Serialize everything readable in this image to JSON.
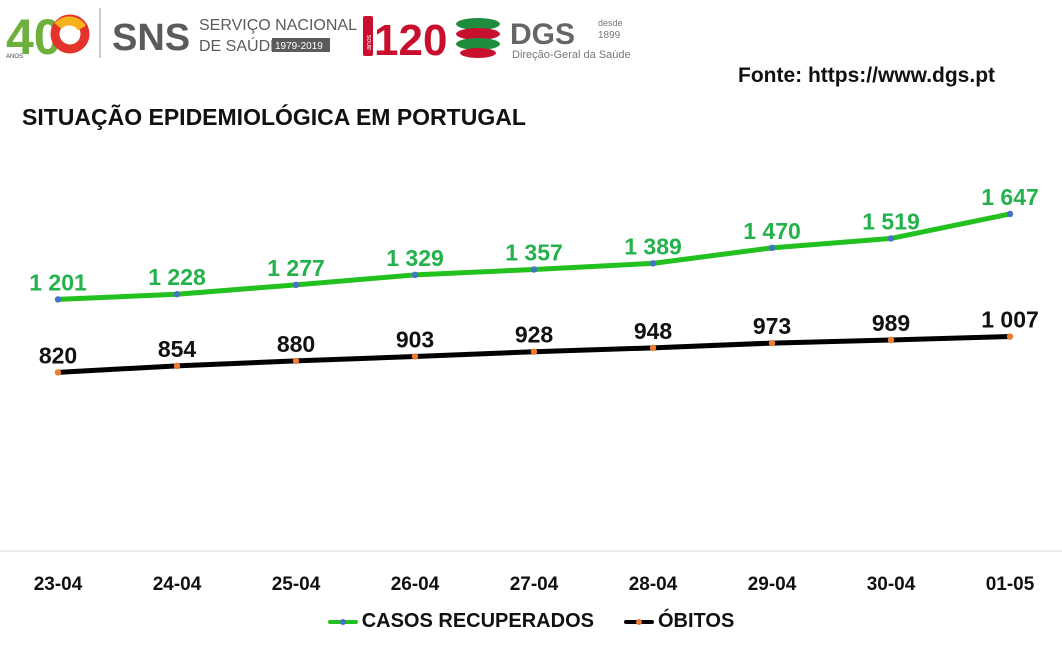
{
  "header": {
    "logo_40_number": "40",
    "logo_40_small": "ANOS",
    "sns_abbr": "SNS",
    "sns_line1": "SERVIÇO NACIONAL",
    "sns_line2": "DE SAÚDE",
    "sns_years": "1979-2019",
    "dgs_number": "120",
    "dgs_small": "anos",
    "dgs_abbr": "DGS",
    "dgs_since_1": "desde",
    "dgs_since_2": "1899",
    "dgs_name": "Direção-Geral da Saúde"
  },
  "source": "Fonte: https://www.dgs.pt",
  "colors": {
    "recovered": "#22C11F",
    "deaths": "#000000",
    "recovered_marker": "#4472C4",
    "deaths_marker": "#ED7D31",
    "recovered_label": "#23B24B"
  },
  "chart_data": {
    "type": "line",
    "title": "SITUAÇÃO EPIDEMIOLÓGICA EM PORTUGAL",
    "categories": [
      "23-04",
      "24-04",
      "25-04",
      "26-04",
      "27-04",
      "28-04",
      "29-04",
      "30-04",
      "01-05"
    ],
    "ylim": [
      0,
      2000
    ],
    "grid": false,
    "legend_position": "bottom",
    "series": [
      {
        "name": "CASOS RECUPERADOS",
        "values": [
          1201,
          1228,
          1277,
          1329,
          1357,
          1389,
          1470,
          1519,
          1647
        ],
        "labels": [
          "1 201",
          "1 228",
          "1 277",
          "1 329",
          "1 357",
          "1 389",
          "1 470",
          "1 519",
          "1 647"
        ]
      },
      {
        "name": "ÓBITOS",
        "values": [
          820,
          854,
          880,
          903,
          928,
          948,
          973,
          989,
          1007
        ],
        "labels": [
          "820",
          "854",
          "880",
          "903",
          "928",
          "948",
          "973",
          "989",
          "1 007"
        ]
      }
    ]
  }
}
